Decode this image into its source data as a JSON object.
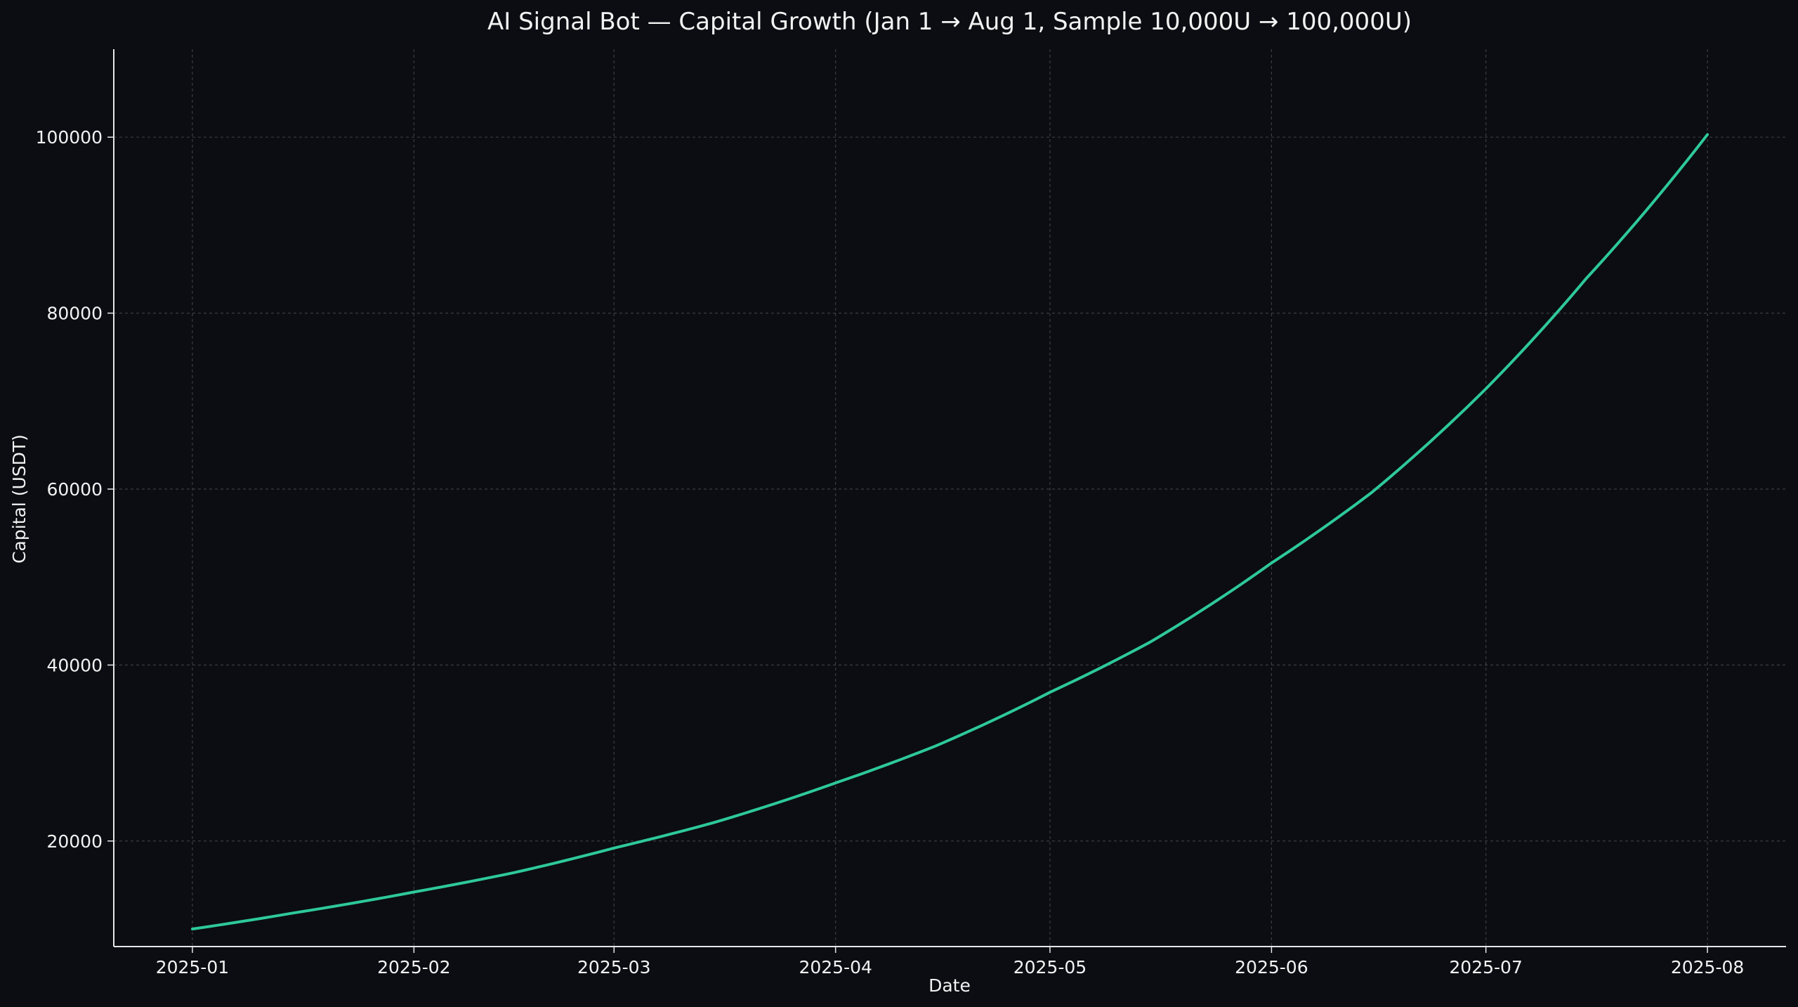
{
  "chart_data": {
    "type": "line",
    "title": "AI Signal Bot — Capital Growth (Jan 1 → Aug 1, Sample 10,000U → 100,000U)",
    "xlabel": "Date",
    "ylabel": "Capital (USDT)",
    "x_tick_labels": [
      "2025-01",
      "2025-02",
      "2025-03",
      "2025-04",
      "2025-05",
      "2025-06",
      "2025-07",
      "2025-08"
    ],
    "y_tick_values": [
      20000,
      40000,
      60000,
      80000,
      100000
    ],
    "ylim": [
      8000,
      110000
    ],
    "xlim": [
      "2024-12-21",
      "2025-08-12"
    ],
    "grid": true,
    "colors": {
      "background": "#0b0d12",
      "line": "#2ec99a",
      "axis": "#e6e6e6",
      "text": "#f2f2f2",
      "grid": "#3a3d44"
    },
    "series": [
      {
        "x": [
          "2025-01-01",
          "2025-01-15",
          "2025-02-01",
          "2025-02-15",
          "2025-03-01",
          "2025-03-15",
          "2025-04-01",
          "2025-04-15",
          "2025-05-01",
          "2025-05-15",
          "2025-06-01",
          "2025-06-15",
          "2025-07-01",
          "2025-07-15",
          "2025-08-01"
        ],
        "y": [
          10000,
          11800,
          14200,
          16400,
          19200,
          22100,
          26600,
          30800,
          36900,
          42600,
          51600,
          59600,
          71400,
          83900,
          100300
        ]
      }
    ]
  }
}
